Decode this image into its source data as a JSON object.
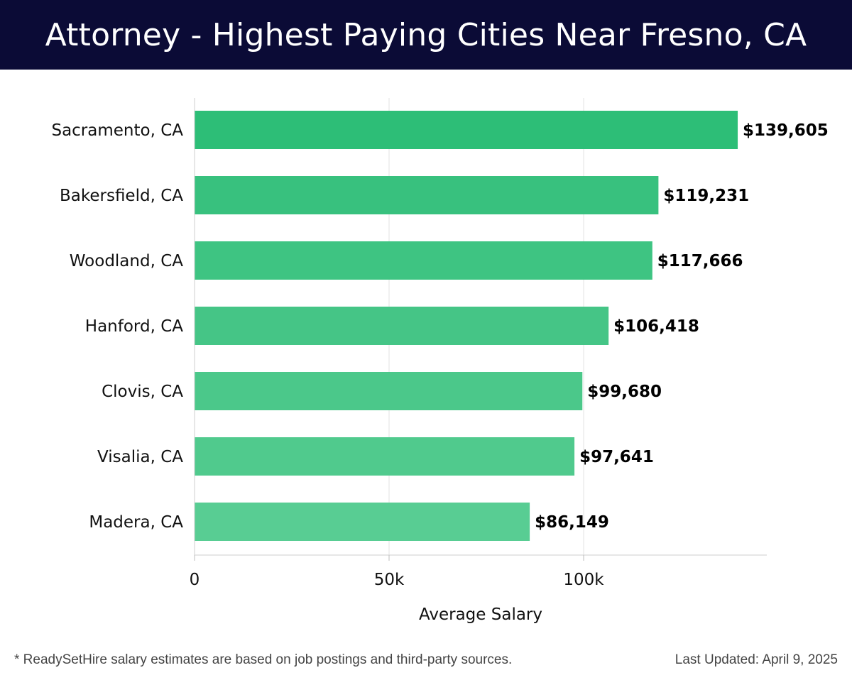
{
  "header": {
    "title": "Attorney - Highest Paying Cities Near Fresno, CA"
  },
  "chart_data": {
    "type": "bar",
    "orientation": "horizontal",
    "title": "Attorney - Highest Paying Cities Near Fresno, CA",
    "xlabel": "Average Salary",
    "ylabel": "",
    "categories": [
      "Sacramento, CA",
      "Bakersfield, CA",
      "Woodland, CA",
      "Hanford, CA",
      "Clovis, CA",
      "Visalia, CA",
      "Madera, CA"
    ],
    "values": [
      139605,
      119231,
      117666,
      106418,
      99680,
      97641,
      86149
    ],
    "value_labels": [
      "$139,605",
      "$119,231",
      "$117,666",
      "$106,418",
      "$99,680",
      "$97,641",
      "$86,149"
    ],
    "x_ticks": [
      0,
      50000,
      100000
    ],
    "x_tick_labels": [
      "0",
      "50k",
      "100k"
    ],
    "xlim": [
      0,
      147000
    ],
    "grid": true,
    "bar_colors": [
      "#2dbe77",
      "#38c17e",
      "#3ec482",
      "#45c586",
      "#4bc88a",
      "#50ca8d",
      "#58cd93"
    ]
  },
  "footer": {
    "note": "* ReadySetHire salary estimates are based on job postings and third-party sources.",
    "updated": "Last Updated: April 9, 2025"
  }
}
